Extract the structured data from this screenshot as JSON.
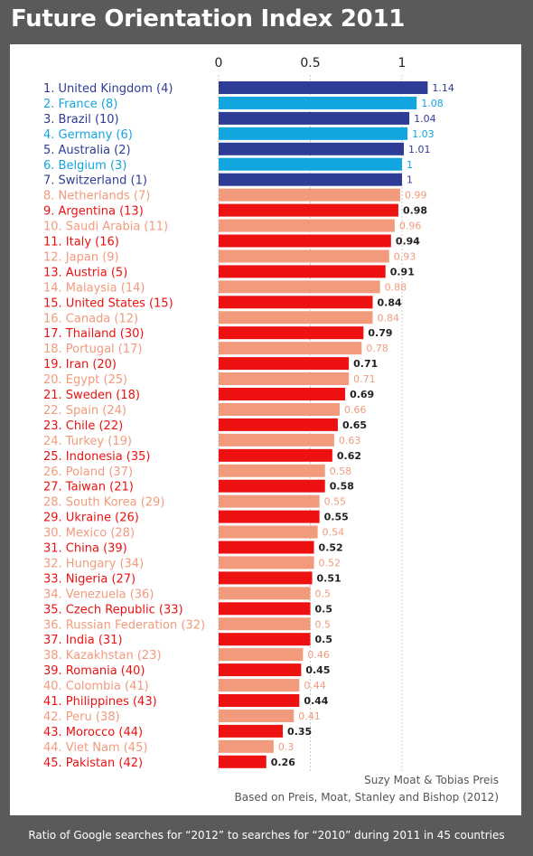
{
  "title": "Future Orientation Index 2011",
  "credits": {
    "authors": "Suzy Moat & Tobias Preis",
    "source": "Based on Preis, Moat, Stanley and Bishop (2012)"
  },
  "footnote": "Ratio of Google searches for “2012” to searches for “2010” during 2011 in 45 countries",
  "colors": {
    "navy": "#2e3c96",
    "cyan": "#12a5e0",
    "salmon": "#f29a7c",
    "red": "#ee1111"
  },
  "chart_data": {
    "type": "bar",
    "orientation": "horizontal",
    "x_ticks": [
      "0",
      "0.5",
      "1"
    ],
    "xlim": [
      0,
      1.2
    ],
    "grid": true,
    "categories": [
      "1. United Kingdom (4)",
      "2. France (8)",
      "3. Brazil (10)",
      "4. Germany (6)",
      "5. Australia (2)",
      "6. Belgium (3)",
      "7. Switzerland (1)",
      "8. Netherlands (7)",
      "9. Argentina (13)",
      "10. Saudi Arabia (11)",
      "11. Italy (16)",
      "12. Japan (9)",
      "13. Austria (5)",
      "14. Malaysia (14)",
      "15. United States (15)",
      "16. Canada (12)",
      "17. Thailand (30)",
      "18. Portugal (17)",
      "19. Iran (20)",
      "20. Egypt (25)",
      "21. Sweden (18)",
      "22. Spain (24)",
      "23. Chile (22)",
      "24. Turkey (19)",
      "25. Indonesia (35)",
      "26. Poland (37)",
      "27. Taiwan (21)",
      "28. South Korea (29)",
      "29. Ukraine (26)",
      "30. Mexico (28)",
      "31. China (39)",
      "32. Hungary (34)",
      "33. Nigeria (27)",
      "34. Venezuela (36)",
      "35. Czech Republic (33)",
      "36. Russian Federation (32)",
      "37. India (31)",
      "38. Kazakhstan (23)",
      "39. Romania (40)",
      "40. Colombia (41)",
      "41. Philippines (43)",
      "42. Peru (38)",
      "43. Morocco (44)",
      "44. Viet Nam (45)",
      "45. Pakistan (42)"
    ],
    "value_labels": [
      "1.14",
      "1.08",
      "1.04",
      "1.03",
      "1.01",
      "1",
      "1",
      "0.99",
      "0.98",
      "0.96",
      "0.94",
      "0.93",
      "0.91",
      "0.88",
      "0.84",
      "0.84",
      "0.79",
      "0.78",
      "0.71",
      "0.71",
      "0.69",
      "0.66",
      "0.65",
      "0.63",
      "0.62",
      "0.58",
      "0.58",
      "0.55",
      "0.55",
      "0.54",
      "0.52",
      "0.52",
      "0.51",
      "0.5",
      "0.5",
      "0.5",
      "0.5",
      "0.46",
      "0.45",
      "0.44",
      "0.44",
      "0.41",
      "0.35",
      "0.3",
      "0.26"
    ],
    "values": [
      1.14,
      1.08,
      1.04,
      1.03,
      1.01,
      1.0,
      1.0,
      0.99,
      0.98,
      0.96,
      0.94,
      0.93,
      0.91,
      0.88,
      0.84,
      0.84,
      0.79,
      0.78,
      0.71,
      0.71,
      0.69,
      0.66,
      0.65,
      0.63,
      0.62,
      0.58,
      0.58,
      0.55,
      0.55,
      0.54,
      0.52,
      0.52,
      0.51,
      0.5,
      0.5,
      0.5,
      0.5,
      0.46,
      0.45,
      0.44,
      0.44,
      0.41,
      0.35,
      0.3,
      0.26
    ],
    "bar_colors": [
      "navy",
      "cyan",
      "navy",
      "cyan",
      "navy",
      "cyan",
      "navy",
      "salmon",
      "red",
      "salmon",
      "red",
      "salmon",
      "red",
      "salmon",
      "red",
      "salmon",
      "red",
      "salmon",
      "red",
      "salmon",
      "red",
      "salmon",
      "red",
      "salmon",
      "red",
      "salmon",
      "red",
      "salmon",
      "red",
      "salmon",
      "red",
      "salmon",
      "red",
      "salmon",
      "red",
      "salmon",
      "red",
      "salmon",
      "red",
      "salmon",
      "red",
      "salmon",
      "red",
      "salmon",
      "red"
    ]
  }
}
